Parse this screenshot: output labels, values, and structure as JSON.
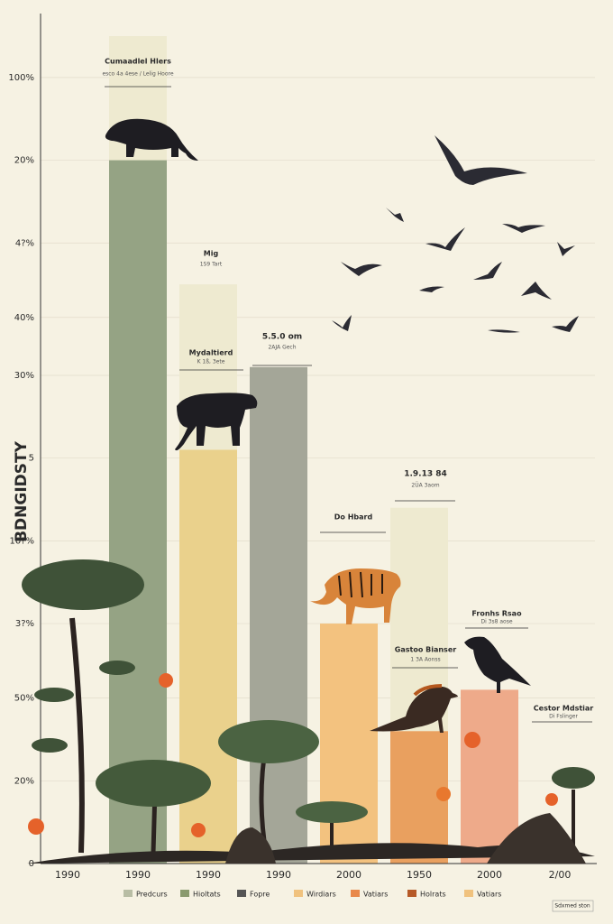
{
  "chart_data": {
    "type": "bar",
    "y_axis_label": "BDNGIDSTY",
    "categories": [
      "1990",
      "1990",
      "1990",
      "1990",
      "2000",
      "1950",
      "2000",
      "2/00"
    ],
    "values": [
      null,
      85,
      50,
      60,
      29,
      16,
      21,
      null
    ],
    "faded_values": [
      null,
      100,
      70,
      null,
      null,
      43,
      null,
      null
    ],
    "colors": [
      null,
      "#95a384",
      "#ead18c",
      "#a4a698",
      "#f3c27f",
      "#e9a05f",
      "#eeaa8a",
      null
    ],
    "faded_color": "#eeead0",
    "ylim": [
      0,
      100
    ],
    "yticks": [
      {
        "value": 95,
        "label": "100%"
      },
      {
        "value": 85,
        "label": "20%"
      },
      {
        "value": 75,
        "label": "4?%"
      },
      {
        "value": 66,
        "label": "40%"
      },
      {
        "value": 59,
        "label": "30%"
      },
      {
        "value": 49,
        "label": "5"
      },
      {
        "value": 39,
        "label": "10?%"
      },
      {
        "value": 29,
        "label": "3?%"
      },
      {
        "value": 20,
        "label": "50%"
      },
      {
        "value": 10,
        "label": "20%"
      },
      0
    ],
    "grid": true,
    "annotations": [
      {
        "text": "Cumaadlel Hlers",
        "sub": "esco 4a 4ese / Lelig Hoore"
      },
      {
        "text": "Mig",
        "sub": "1S9 Tart"
      },
      {
        "text": "Mydaltierd",
        "sub": "K 1ß, 3ete"
      },
      {
        "text": "5.5.0 om",
        "sub": "2AJA Gech"
      },
      {
        "text": "Do Hbard",
        "sub": ""
      },
      {
        "text": "1.9.13 84",
        "sub": "2ÜA 3aom"
      },
      {
        "text": "Gastoo Bianser",
        "sub": "1 3A Aonss"
      },
      {
        "text": "Fronhs Rsao",
        "sub": "Di 3s8 aose"
      },
      {
        "text": "Cestor Mdstiar",
        "sub": "Di Fslinger"
      }
    ],
    "legend": [
      {
        "label": "Predcurs",
        "color": "#b8bda4"
      },
      {
        "label": "Hioltats",
        "color": "#8a9a6e"
      },
      {
        "label": "Fopre",
        "color": "#555555"
      },
      {
        "label": "Wirdiars",
        "color": "#f0c27e"
      },
      {
        "label": "Vatiars",
        "color": "#e8884a"
      },
      {
        "label": "Holrats",
        "color": "#b65a28"
      },
      {
        "label": "Vatiars",
        "color": "#f0c27e"
      }
    ],
    "footer": "Sdxmed ston"
  }
}
